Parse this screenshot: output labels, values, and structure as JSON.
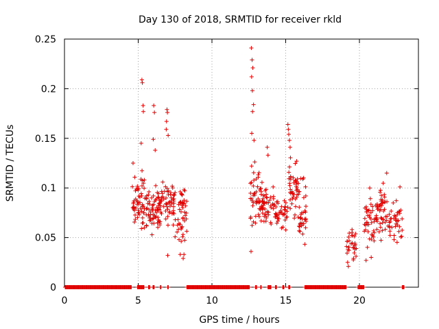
{
  "chart_data": {
    "type": "scatter",
    "title": "Day 130 of 2018, SRMTID for receiver rkld",
    "xlabel": "GPS time / hours",
    "ylabel": "SRMTID / TECUs",
    "xlim": [
      0,
      24
    ],
    "ylim": [
      0,
      0.25
    ],
    "xticks": [
      0,
      5,
      10,
      15,
      20
    ],
    "yticks": [
      0,
      0.05,
      0.1,
      0.15,
      0.2,
      0.25
    ],
    "ytick_labels": [
      "0",
      "0.05",
      "0.1",
      "0.15",
      "0.2",
      "0.25"
    ],
    "grid": true,
    "marker": "+",
    "color": "#e00000",
    "zero_segments": [
      [
        0.05,
        4.55
      ],
      [
        4.95,
        5.4
      ],
      [
        5.7,
        5.8
      ],
      [
        6.0,
        6.1
      ],
      [
        6.5,
        6.55
      ],
      [
        7.0,
        7.05
      ],
      [
        8.3,
        12.55
      ],
      [
        12.95,
        13.05
      ],
      [
        13.3,
        13.35
      ],
      [
        13.8,
        14.0
      ],
      [
        14.3,
        14.4
      ],
      [
        14.8,
        14.9
      ],
      [
        15.2,
        15.3
      ],
      [
        16.3,
        19.1
      ],
      [
        19.9,
        20.3
      ],
      [
        22.9,
        23.05
      ]
    ],
    "clusters": [
      {
        "x_range": [
          4.6,
          5.5
        ],
        "y_range": [
          0.045,
          0.125
        ],
        "count": 60
      },
      {
        "x_range": [
          5.5,
          6.5
        ],
        "y_range": [
          0.045,
          0.11
        ],
        "count": 70
      },
      {
        "x_range": [
          6.5,
          7.5
        ],
        "y_range": [
          0.055,
          0.115
        ],
        "count": 55
      },
      {
        "x_range": [
          7.5,
          8.3
        ],
        "y_range": [
          0.03,
          0.12
        ],
        "count": 45
      },
      {
        "x_range": [
          12.6,
          13.4
        ],
        "y_range": [
          0.05,
          0.13
        ],
        "count": 50
      },
      {
        "x_range": [
          13.4,
          14.2
        ],
        "y_range": [
          0.055,
          0.11
        ],
        "count": 45
      },
      {
        "x_range": [
          14.2,
          15.2
        ],
        "y_range": [
          0.05,
          0.1
        ],
        "count": 40
      },
      {
        "x_range": [
          15.2,
          15.9
        ],
        "y_range": [
          0.06,
          0.14
        ],
        "count": 45
      },
      {
        "x_range": [
          15.9,
          16.4
        ],
        "y_range": [
          0.035,
          0.12
        ],
        "count": 35
      },
      {
        "x_range": [
          19.1,
          19.8
        ],
        "y_range": [
          0.02,
          0.07
        ],
        "count": 30
      },
      {
        "x_range": [
          20.3,
          21.2
        ],
        "y_range": [
          0.03,
          0.1
        ],
        "count": 45
      },
      {
        "x_range": [
          21.2,
          22.0
        ],
        "y_range": [
          0.03,
          0.115
        ],
        "count": 45
      },
      {
        "x_range": [
          22.0,
          22.9
        ],
        "y_range": [
          0.035,
          0.1
        ],
        "count": 40
      }
    ],
    "outliers": [
      [
        12.67,
        0.241
      ],
      [
        12.72,
        0.229
      ],
      [
        12.77,
        0.221
      ],
      [
        12.69,
        0.212
      ],
      [
        12.74,
        0.198
      ],
      [
        12.82,
        0.184
      ],
      [
        12.75,
        0.177
      ],
      [
        12.7,
        0.155
      ],
      [
        12.85,
        0.148
      ],
      [
        5.25,
        0.209
      ],
      [
        5.28,
        0.206
      ],
      [
        5.33,
        0.183
      ],
      [
        5.35,
        0.177
      ],
      [
        5.2,
        0.145
      ],
      [
        6.05,
        0.183
      ],
      [
        6.1,
        0.176
      ],
      [
        6.02,
        0.149
      ],
      [
        6.15,
        0.138
      ],
      [
        6.95,
        0.179
      ],
      [
        6.98,
        0.176
      ],
      [
        6.92,
        0.167
      ],
      [
        6.9,
        0.159
      ],
      [
        7.03,
        0.153
      ],
      [
        15.15,
        0.164
      ],
      [
        15.18,
        0.159
      ],
      [
        15.21,
        0.154
      ],
      [
        15.25,
        0.148
      ],
      [
        15.3,
        0.141
      ],
      [
        13.75,
        0.141
      ],
      [
        13.8,
        0.133
      ],
      [
        4.65,
        0.125
      ],
      [
        21.85,
        0.115
      ],
      [
        22.75,
        0.101
      ],
      [
        20.7,
        0.1
      ],
      [
        7.85,
        0.033
      ],
      [
        8.1,
        0.033
      ],
      [
        8.05,
        0.029
      ],
      [
        7.0,
        0.032
      ],
      [
        12.65,
        0.036
      ],
      [
        19.25,
        0.021
      ],
      [
        19.2,
        0.025
      ],
      [
        20.45,
        0.027
      ],
      [
        20.8,
        0.03
      ]
    ]
  }
}
